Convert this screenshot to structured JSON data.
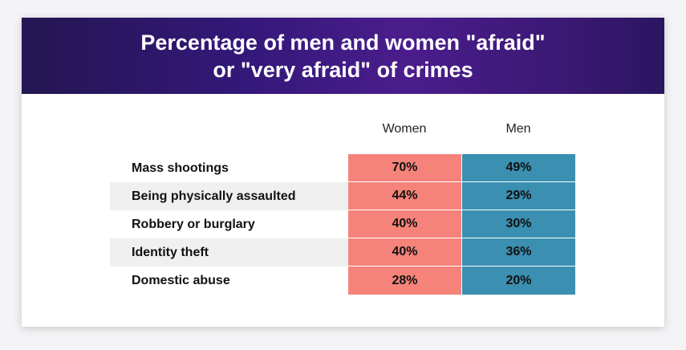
{
  "chart_data": {
    "type": "table",
    "title": "Percentage of men and women \"afraid\"\nor \"very afraid\" of crimes",
    "columns": [
      "Women",
      "Men"
    ],
    "rows": [
      {
        "label": "Mass shootings",
        "women": "70%",
        "men": "49%"
      },
      {
        "label": "Being physically assaulted",
        "women": "44%",
        "men": "29%"
      },
      {
        "label": "Robbery or burglary",
        "women": "40%",
        "men": "30%"
      },
      {
        "label": "Identity theft",
        "women": "40%",
        "men": "36%"
      },
      {
        "label": "Domestic abuse",
        "women": "28%",
        "men": "20%"
      }
    ],
    "colors": {
      "women": "#f5837a",
      "men": "#3b8fb0",
      "banner_start": "#241652",
      "banner_end": "#4b1d8c"
    }
  }
}
